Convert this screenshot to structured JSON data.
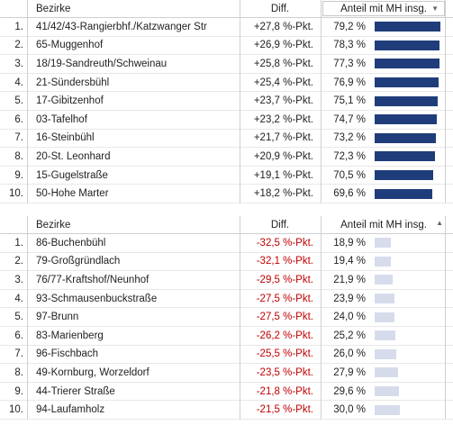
{
  "top": {
    "headers": {
      "district": "Bezirke",
      "diff": "Diff.",
      "share": "Anteil mit MH insg."
    },
    "sort_icon": "sort-descending-icon",
    "bar_color": "#1f3d7a",
    "rows": [
      {
        "rank": "1.",
        "name": "41/42/43-Rangierbhf./Katzwanger Str",
        "diff": "+27,8 %-Pkt.",
        "share": "79,2 %",
        "value": 79.2
      },
      {
        "rank": "2.",
        "name": "65-Muggenhof",
        "diff": "+26,9 %-Pkt.",
        "share": "78,3 %",
        "value": 78.3
      },
      {
        "rank": "3.",
        "name": "18/19-Sandreuth/Schweinau",
        "diff": "+25,8 %-Pkt.",
        "share": "77,3 %",
        "value": 77.3
      },
      {
        "rank": "4.",
        "name": "21-Sündersbühl",
        "diff": "+25,4 %-Pkt.",
        "share": "76,9 %",
        "value": 76.9
      },
      {
        "rank": "5.",
        "name": "17-Gibitzenhof",
        "diff": "+23,7 %-Pkt.",
        "share": "75,1 %",
        "value": 75.1
      },
      {
        "rank": "6.",
        "name": "03-Tafelhof",
        "diff": "+23,2 %-Pkt.",
        "share": "74,7 %",
        "value": 74.7
      },
      {
        "rank": "7.",
        "name": "16-Steinbühl",
        "diff": "+21,7 %-Pkt.",
        "share": "73,2 %",
        "value": 73.2
      },
      {
        "rank": "8.",
        "name": "20-St. Leonhard",
        "diff": "+20,9 %-Pkt.",
        "share": "72,3 %",
        "value": 72.3
      },
      {
        "rank": "9.",
        "name": "15-Gugelstraße",
        "diff": "+19,1 %-Pkt.",
        "share": "70,5 %",
        "value": 70.5
      },
      {
        "rank": "10.",
        "name": "50-Hohe Marter",
        "diff": "+18,2 %-Pkt.",
        "share": "69,6 %",
        "value": 69.6
      }
    ]
  },
  "bottom": {
    "headers": {
      "district": "Bezirke",
      "diff": "Diff.",
      "share": "Anteil mit MH insg."
    },
    "sort_icon": "sort-ascending-icon",
    "bar_color": "#d6dceb",
    "rows": [
      {
        "rank": "1.",
        "name": "86-Buchenbühl",
        "diff": "-32,5 %-Pkt.",
        "share": "18,9 %",
        "value": 18.9
      },
      {
        "rank": "2.",
        "name": "79-Großgründlach",
        "diff": "-32,1 %-Pkt.",
        "share": "19,4 %",
        "value": 19.4
      },
      {
        "rank": "3.",
        "name": "76/77-Kraftshof/Neunhof",
        "diff": "-29,5 %-Pkt.",
        "share": "21,9 %",
        "value": 21.9
      },
      {
        "rank": "4.",
        "name": "93-Schmausenbuckstraße",
        "diff": "-27,5 %-Pkt.",
        "share": "23,9 %",
        "value": 23.9
      },
      {
        "rank": "5.",
        "name": "97-Brunn",
        "diff": "-27,5 %-Pkt.",
        "share": "24,0 %",
        "value": 24.0
      },
      {
        "rank": "6.",
        "name": "83-Marienberg",
        "diff": "-26,2 %-Pkt.",
        "share": "25,2 %",
        "value": 25.2
      },
      {
        "rank": "7.",
        "name": "96-Fischbach",
        "diff": "-25,5 %-Pkt.",
        "share": "26,0 %",
        "value": 26.0
      },
      {
        "rank": "8.",
        "name": "49-Kornburg, Worzeldorf",
        "diff": "-23,5 %-Pkt.",
        "share": "27,9 %",
        "value": 27.9
      },
      {
        "rank": "9.",
        "name": "44-Trierer Straße",
        "diff": "-21,8 %-Pkt.",
        "share": "29,6 %",
        "value": 29.6
      },
      {
        "rank": "10.",
        "name": "94-Laufamholz",
        "diff": "-21,5 %-Pkt.",
        "share": "30,0 %",
        "value": 30.0
      }
    ]
  }
}
